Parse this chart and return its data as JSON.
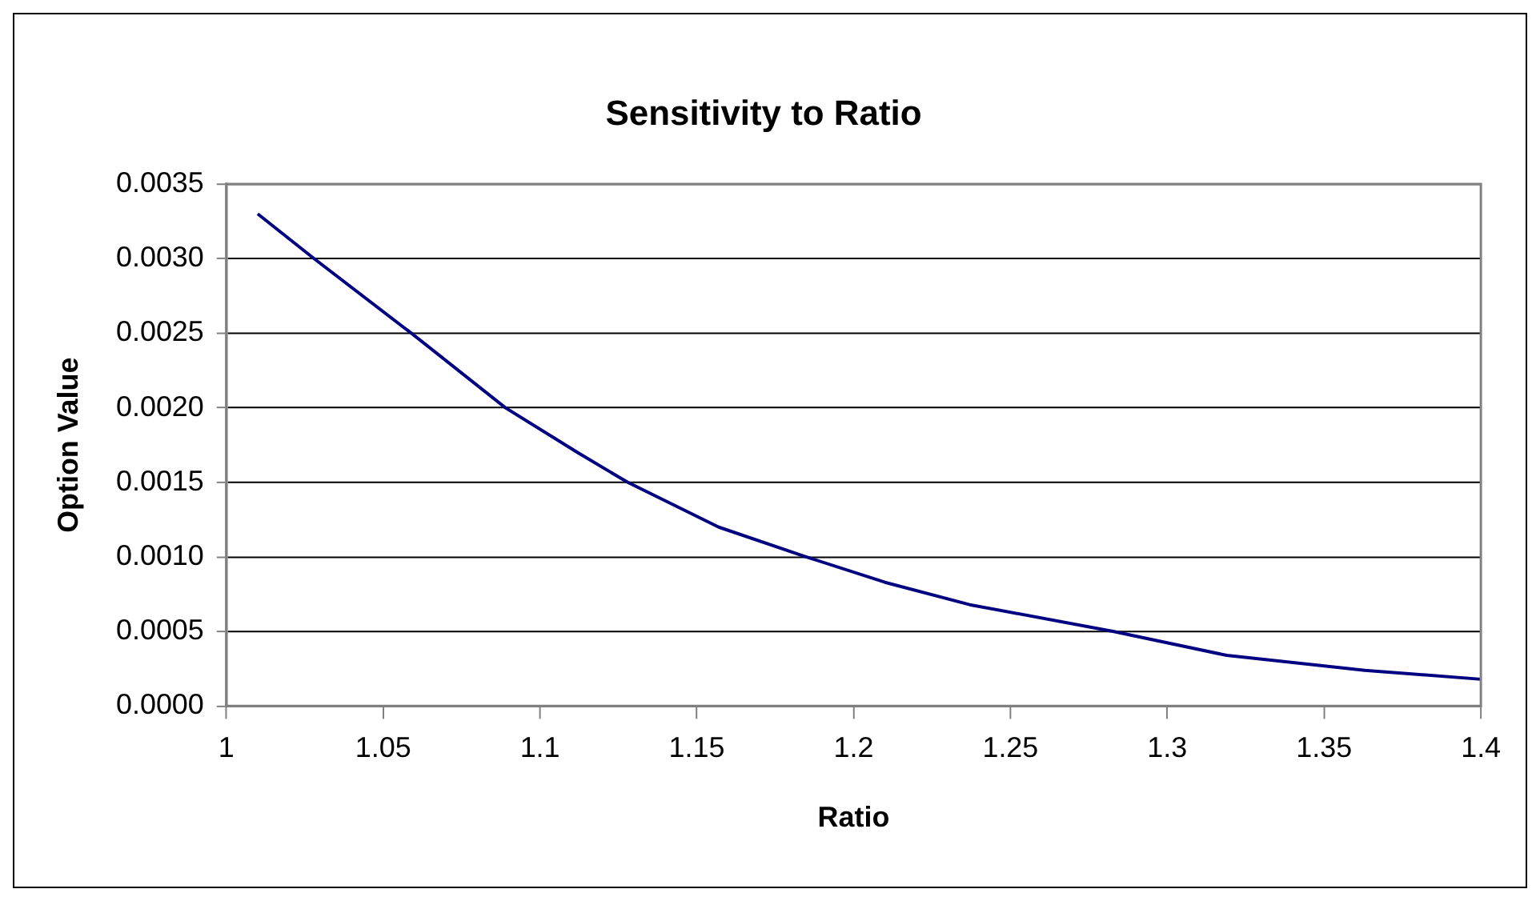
{
  "chart_data": {
    "type": "line",
    "title": "Sensitivity to Ratio",
    "xlabel": "Ratio",
    "ylabel": "Option Value",
    "series": [
      {
        "color": "#000080",
        "x": [
          1.01,
          1.028,
          1.059,
          1.089,
          1.112,
          1.128,
          1.157,
          1.185,
          1.21,
          1.237,
          1.283,
          1.319,
          1.363,
          1.4
        ],
        "values": [
          0.0033,
          0.003,
          0.0025,
          0.002,
          0.0017,
          0.0015,
          0.0012,
          0.001,
          0.00083,
          0.00068,
          0.0005,
          0.00034,
          0.00024,
          0.00018
        ]
      }
    ],
    "xlim": [
      1,
      1.4
    ],
    "xticks": [
      1,
      1.05,
      1.1,
      1.15,
      1.2,
      1.25,
      1.3,
      1.35,
      1.4
    ],
    "ylim": [
      0,
      0.0035
    ],
    "yticks": [
      {
        "value": 0,
        "label": "0.0000"
      },
      {
        "value": 0.0005,
        "label": "0.0005"
      },
      {
        "value": 0.001,
        "label": "0.0010"
      },
      {
        "value": 0.0015,
        "label": "0.0015"
      },
      {
        "value": 0.002,
        "label": "0.0020"
      },
      {
        "value": 0.0025,
        "label": "0.0025"
      },
      {
        "value": 0.003,
        "label": "0.0030"
      },
      {
        "value": 0.0035,
        "label": "0.0035"
      }
    ],
    "grid": "y",
    "legend": false,
    "marker": "none",
    "line_style": "solid"
  }
}
